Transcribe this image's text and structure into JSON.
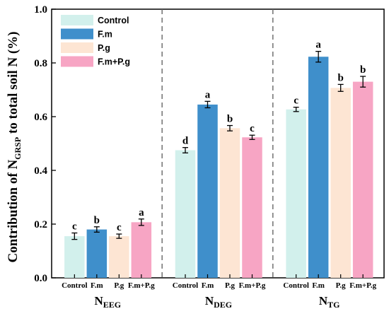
{
  "chart_data": {
    "type": "bar",
    "ylabel_prefix": "Contribution of N",
    "ylabel_sub": "GRSP",
    "ylabel_suffix": " to total soil N (%)",
    "ylim": [
      0.0,
      1.0
    ],
    "yticks": [
      "0.0",
      "0.2",
      "0.4",
      "0.6",
      "0.8",
      "1.0"
    ],
    "ytick_values": [
      0.0,
      0.2,
      0.4,
      0.6,
      0.8,
      1.0
    ],
    "legend": [
      "Control",
      "F.m",
      "P.g",
      "F.m+P.g"
    ],
    "colors": [
      "#d2f0ec",
      "#3f8fcb",
      "#fde5d3",
      "#f7a5c4"
    ],
    "groups": [
      {
        "label_main": "N",
        "label_sub": "EEG",
        "bars": [
          {
            "category": "Control",
            "value": 0.155,
            "error": 0.012,
            "sig": "c"
          },
          {
            "category": "F.m",
            "value": 0.18,
            "error": 0.01,
            "sig": "b"
          },
          {
            "category": "P.g",
            "value": 0.155,
            "error": 0.008,
            "sig": "c"
          },
          {
            "category": "F.m+P.g",
            "value": 0.207,
            "error": 0.012,
            "sig": "a"
          }
        ]
      },
      {
        "label_main": "N",
        "label_sub": "DEG",
        "bars": [
          {
            "category": "Control",
            "value": 0.475,
            "error": 0.01,
            "sig": "d"
          },
          {
            "category": "F.m",
            "value": 0.645,
            "error": 0.012,
            "sig": "a"
          },
          {
            "category": "P.g",
            "value": 0.557,
            "error": 0.01,
            "sig": "b"
          },
          {
            "category": "F.m+P.g",
            "value": 0.523,
            "error": 0.008,
            "sig": "c"
          }
        ]
      },
      {
        "label_main": "N",
        "label_sub": "TG",
        "bars": [
          {
            "category": "Control",
            "value": 0.627,
            "error": 0.008,
            "sig": "c"
          },
          {
            "category": "F.m",
            "value": 0.823,
            "error": 0.02,
            "sig": "a"
          },
          {
            "category": "P.g",
            "value": 0.707,
            "error": 0.013,
            "sig": "b"
          },
          {
            "category": "F.m+P.g",
            "value": 0.73,
            "error": 0.02,
            "sig": "b"
          }
        ]
      }
    ],
    "grid": false,
    "legend_position": "top-left"
  }
}
